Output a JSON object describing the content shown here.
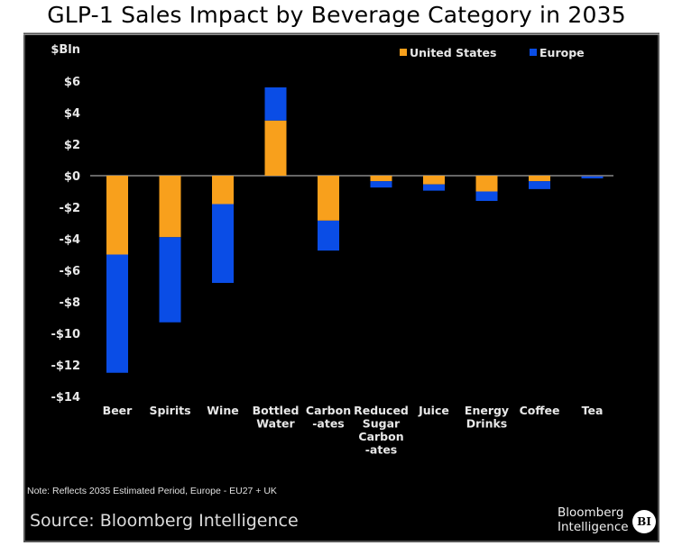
{
  "title": "GLP-1 Sales Impact by Beverage Category in 2035",
  "note": "Note: Reflects 2035 Estimated Period, Europe - EU27 + UK",
  "source": "Source: Bloomberg Intelligence",
  "brand": {
    "line1": "Bloomberg",
    "line2": "Intelligence",
    "badge": "BI"
  },
  "colors": {
    "us": "#F8A01C",
    "europe": "#0A4DE6",
    "background": "#000000",
    "axis": "#666666",
    "text": "#E8E8E8"
  },
  "chart_data": {
    "type": "bar",
    "stacked": true,
    "title": "GLP-1 Sales Impact by Beverage Category in 2035",
    "xlabel": "",
    "ylabel": "$Bln",
    "ylim": [
      -14,
      6
    ],
    "yticks": [
      6,
      4,
      2,
      0,
      -2,
      -4,
      -6,
      -8,
      -10,
      -12,
      -14
    ],
    "ytick_labels": [
      "$6",
      "$4",
      "$2",
      "$0",
      "-$2",
      "-$4",
      "-$6",
      "-$8",
      "-$10",
      "-$12",
      "-$14"
    ],
    "grid": false,
    "legend_position": "top-right",
    "categories": [
      [
        "Beer"
      ],
      [
        "Spirits"
      ],
      [
        "Wine"
      ],
      [
        "Bottled",
        "Water"
      ],
      [
        "Carbon",
        "-ates"
      ],
      [
        "Reduced",
        "Sugar",
        "Carbon",
        "-ates"
      ],
      [
        "Juice"
      ],
      [
        "Energy",
        "Drinks"
      ],
      [
        "Coffee"
      ],
      [
        "Tea"
      ]
    ],
    "series": [
      {
        "name": "United States",
        "color": "#F8A01C",
        "values": [
          -5.0,
          -3.9,
          -1.8,
          3.5,
          -2.85,
          -0.35,
          -0.55,
          -1.0,
          -0.35,
          -0.02
        ]
      },
      {
        "name": "Europe",
        "color": "#0A4DE6",
        "values": [
          -7.5,
          -5.4,
          -5.0,
          2.1,
          -1.9,
          -0.4,
          -0.4,
          -0.6,
          -0.5,
          -0.15
        ]
      }
    ]
  }
}
